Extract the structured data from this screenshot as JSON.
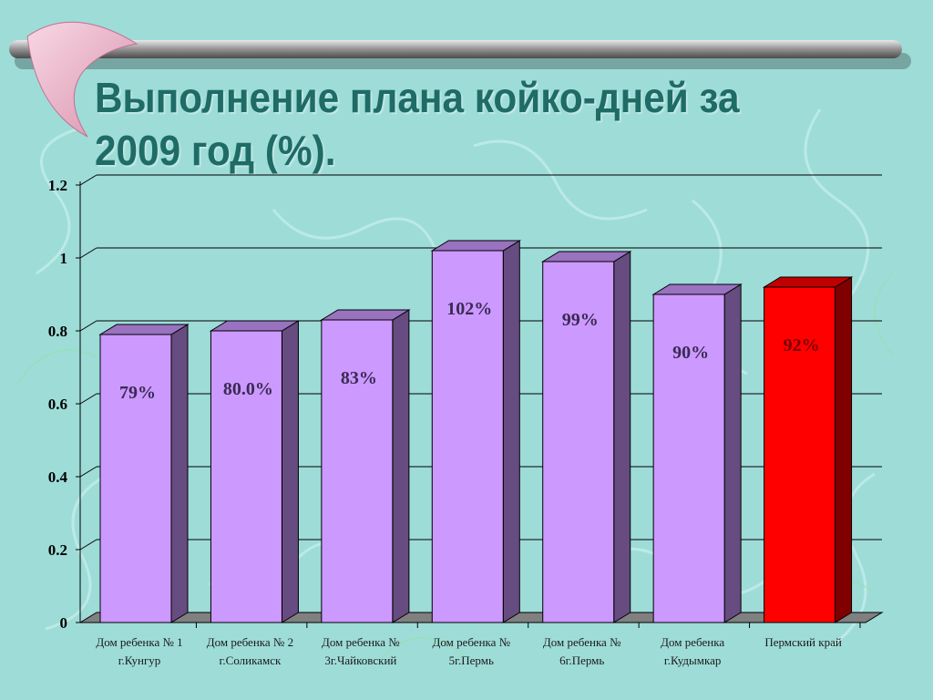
{
  "slide": {
    "title": "Выполнение плана койко-дней за 2009 год (%)."
  },
  "colors": {
    "background": "#9edcd8",
    "title": "#1f6b66",
    "bar_front": "#cc99ff",
    "bar_side": "#664c80",
    "bar_top": "#9972c0",
    "highlight_front": "#ff0000",
    "highlight_side": "#800000",
    "highlight_top": "#c00000",
    "grid": "#000000"
  },
  "chart_data": {
    "type": "bar",
    "title": "",
    "xlabel": "",
    "ylabel": "",
    "ylim": [
      0,
      1.2
    ],
    "yticks": [
      "0",
      "0.2",
      "0.4",
      "0.6",
      "0.8",
      "1",
      "1.2"
    ],
    "grid": true,
    "categories": [
      [
        "Дом ребенка № 1",
        "г.Кунгур"
      ],
      [
        "Дом ребенка № 2",
        "г.Соликамск"
      ],
      [
        "Дом ребенка №",
        "3г.Чайковский"
      ],
      [
        "Дом ребенка №",
        "5г.Пермь"
      ],
      [
        "Дом ребенка №",
        "6г.Пермь"
      ],
      [
        "Дом ребенка",
        "г.Кудымкар"
      ],
      [
        "Пермский край"
      ]
    ],
    "values": [
      0.79,
      0.8,
      0.83,
      1.02,
      0.99,
      0.9,
      0.92
    ],
    "labels": [
      "79%",
      "80.0%",
      "83%",
      "102%",
      "99%",
      "90%",
      "92%"
    ],
    "highlight_index": 6
  }
}
